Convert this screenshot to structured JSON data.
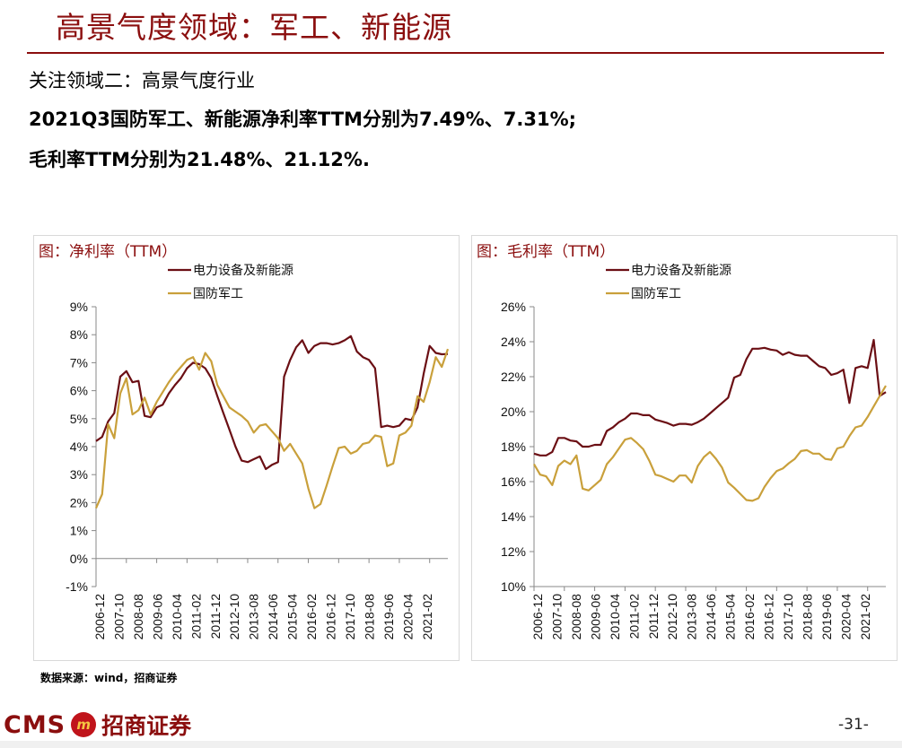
{
  "header": {
    "title": "高景气度领域：军工、新能源"
  },
  "body": {
    "line1": "关注领域二：高景气度行业",
    "line2": "2021Q3国防军工、新能源净利率TTM分别为7.49%、7.31%;",
    "line3": "毛利率TTM分别为21.48%、21.12%."
  },
  "colors": {
    "accent": "#8b0e0e",
    "series_power": "#6b0f14",
    "series_defense": "#c9a03b"
  },
  "chart_data": [
    {
      "type": "line",
      "title": "图：净利率（TTM）",
      "ylabel": "",
      "xlabel": "",
      "ylim": [
        -1,
        9
      ],
      "y_ticks": [
        "-1%",
        "0%",
        "1%",
        "2%",
        "3%",
        "4%",
        "5%",
        "6%",
        "7%",
        "8%",
        "9%"
      ],
      "y_tick_values": [
        -1,
        0,
        1,
        2,
        3,
        4,
        5,
        6,
        7,
        8,
        9
      ],
      "x_tick_labels": [
        "2006-12",
        "2007-10",
        "2008-08",
        "2009-06",
        "2010-04",
        "2011-02",
        "2011-12",
        "2012-10",
        "2013-08",
        "2014-06",
        "2015-04",
        "2016-02",
        "2016-12",
        "2017-10",
        "2018-08",
        "2019-06",
        "2020-04",
        "2021-02"
      ],
      "x_count": 59,
      "legend_placement": "top-center",
      "grid": false,
      "series": [
        {
          "name": "电力设备及新能源",
          "color": "#6b0f14",
          "values": [
            4.2,
            4.35,
            4.9,
            5.2,
            6.5,
            6.7,
            6.3,
            6.35,
            5.1,
            5.05,
            5.4,
            5.5,
            5.9,
            6.2,
            6.45,
            6.8,
            7.0,
            6.95,
            6.8,
            6.45,
            5.8,
            5.2,
            4.6,
            4.0,
            3.5,
            3.45,
            3.55,
            3.65,
            3.2,
            3.35,
            3.45,
            6.5,
            7.1,
            7.55,
            7.8,
            7.35,
            7.6,
            7.7,
            7.7,
            7.65,
            7.7,
            7.8,
            7.95,
            7.4,
            7.2,
            7.1,
            6.8,
            4.7,
            4.75,
            4.7,
            4.75,
            5.0,
            4.95,
            5.4,
            6.6,
            7.6,
            7.35,
            7.3,
            7.31
          ]
        },
        {
          "name": "国防军工",
          "color": "#c9a03b",
          "values": [
            1.8,
            2.3,
            4.8,
            4.3,
            5.9,
            6.45,
            5.15,
            5.3,
            5.75,
            5.15,
            5.6,
            5.95,
            6.3,
            6.6,
            6.85,
            7.1,
            7.2,
            6.75,
            7.35,
            7.05,
            6.2,
            5.8,
            5.4,
            5.25,
            5.1,
            4.9,
            4.5,
            4.75,
            4.8,
            4.55,
            4.3,
            3.85,
            4.1,
            3.75,
            3.4,
            2.5,
            1.8,
            1.95,
            2.6,
            3.3,
            3.95,
            4.0,
            3.75,
            3.85,
            4.1,
            4.15,
            4.4,
            4.35,
            3.3,
            3.4,
            4.4,
            4.5,
            4.75,
            5.8,
            5.6,
            6.3,
            7.2,
            6.85,
            7.49
          ]
        }
      ]
    },
    {
      "type": "line",
      "title": "图：毛利率（TTM）",
      "ylabel": "",
      "xlabel": "",
      "ylim": [
        10,
        26
      ],
      "y_ticks": [
        "10%",
        "12%",
        "14%",
        "16%",
        "18%",
        "20%",
        "22%",
        "24%",
        "26%"
      ],
      "y_tick_values": [
        10,
        12,
        14,
        16,
        18,
        20,
        22,
        24,
        26
      ],
      "x_tick_labels": [
        "2006-12",
        "2007-10",
        "2008-08",
        "2009-06",
        "2010-04",
        "2011-02",
        "2011-12",
        "2012-10",
        "2013-08",
        "2014-06",
        "2015-04",
        "2016-02",
        "2016-12",
        "2017-10",
        "2018-08",
        "2019-06",
        "2020-04",
        "2021-02"
      ],
      "x_count": 59,
      "legend_placement": "top-center",
      "grid": false,
      "series": [
        {
          "name": "电力设备及新能源",
          "color": "#6b0f14",
          "values": [
            17.6,
            17.5,
            17.5,
            17.7,
            18.5,
            18.5,
            18.35,
            18.3,
            18.0,
            18.0,
            18.1,
            18.1,
            18.9,
            19.1,
            19.4,
            19.6,
            19.9,
            19.9,
            19.8,
            19.8,
            19.55,
            19.45,
            19.35,
            19.2,
            19.3,
            19.3,
            19.25,
            19.4,
            19.6,
            19.9,
            20.2,
            20.5,
            20.8,
            21.95,
            22.1,
            23.0,
            23.6,
            23.6,
            23.65,
            23.55,
            23.5,
            23.25,
            23.4,
            23.25,
            23.2,
            23.2,
            22.9,
            22.6,
            22.5,
            22.1,
            22.2,
            22.4,
            20.5,
            22.5,
            22.6,
            22.5,
            24.1,
            20.9,
            21.12
          ]
        },
        {
          "name": "国防军工",
          "color": "#c9a03b",
          "values": [
            17.0,
            16.4,
            16.3,
            15.8,
            16.9,
            17.2,
            17.0,
            17.5,
            15.6,
            15.5,
            15.8,
            16.1,
            17.0,
            17.4,
            17.9,
            18.4,
            18.5,
            18.2,
            17.85,
            17.2,
            16.4,
            16.3,
            16.15,
            16.0,
            16.35,
            16.35,
            15.95,
            16.9,
            17.4,
            17.7,
            17.3,
            16.8,
            15.95,
            15.65,
            15.3,
            14.95,
            14.9,
            15.05,
            15.7,
            16.2,
            16.6,
            16.75,
            17.05,
            17.3,
            17.75,
            17.8,
            17.6,
            17.6,
            17.3,
            17.25,
            17.9,
            18.0,
            18.6,
            19.1,
            19.2,
            19.7,
            20.3,
            20.9,
            21.48
          ]
        }
      ]
    }
  ],
  "source": {
    "note": "数据来源：wind，招商证券"
  },
  "footer": {
    "logo_text": "CMS",
    "logo_mark": "m",
    "logo_cn": "招商证券",
    "page_number": "-31-"
  }
}
